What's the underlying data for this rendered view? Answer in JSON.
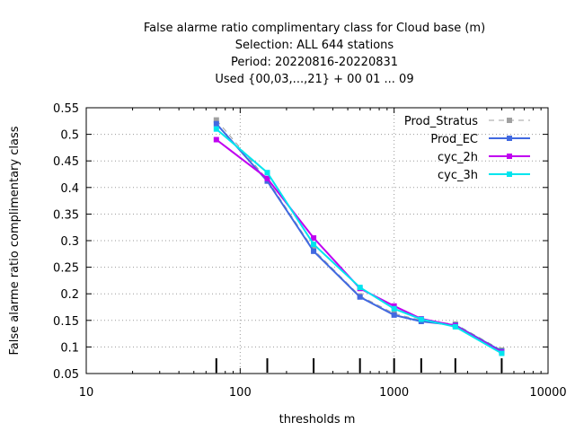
{
  "chart_data": {
    "type": "line",
    "title_lines": [
      "False alarme ratio complimentary class  for Cloud base (m)",
      "Selection: ALL    644 stations",
      "Period: 20220816-20220831",
      "Used {00,03,...,21} + 00 01 ... 09"
    ],
    "xlabel": "thresholds m",
    "ylabel": "False alarme ratio complimentary class",
    "x_scale": "log",
    "xlim": [
      10,
      10000
    ],
    "ylim": [
      0.05,
      0.55
    ],
    "x_ticks": [
      10,
      100,
      1000,
      10000
    ],
    "x_tick_labels": [
      "10",
      "100",
      "1000",
      "10000"
    ],
    "y_ticks": [
      0.05,
      0.1,
      0.15,
      0.2,
      0.25,
      0.3,
      0.35,
      0.4,
      0.45,
      0.5,
      0.55
    ],
    "y_tick_labels": [
      "0.05",
      "0.1",
      "0.15",
      "0.2",
      "0.25",
      "0.3",
      "0.35",
      "0.4",
      "0.45",
      "0.5",
      "0.55"
    ],
    "grid": true,
    "legend_position": "top-right",
    "threshold_markers": [
      70,
      150,
      300,
      600,
      1000,
      1500,
      2500,
      5000
    ],
    "x": [
      70,
      150,
      300,
      600,
      1000,
      1500,
      2500,
      5000
    ],
    "series": [
      {
        "name": "Prod_Stratus",
        "color": "#a0a0a0",
        "dashed": true,
        "values": [
          0.527,
          0.415,
          0.283,
          0.196,
          0.163,
          0.15,
          0.143,
          0.094
        ]
      },
      {
        "name": "Prod_EC",
        "color": "#4169e1",
        "dashed": false,
        "values": [
          0.52,
          0.412,
          0.28,
          0.194,
          0.16,
          0.148,
          0.141,
          0.092
        ]
      },
      {
        "name": "cyc_2h",
        "color": "#c000f0",
        "dashed": false,
        "values": [
          0.49,
          0.417,
          0.305,
          0.21,
          0.177,
          0.153,
          0.14,
          0.09
        ]
      },
      {
        "name": "cyc_3h",
        "color": "#00e5ee",
        "dashed": false,
        "values": [
          0.51,
          0.428,
          0.293,
          0.212,
          0.172,
          0.152,
          0.138,
          0.088
        ]
      }
    ]
  }
}
